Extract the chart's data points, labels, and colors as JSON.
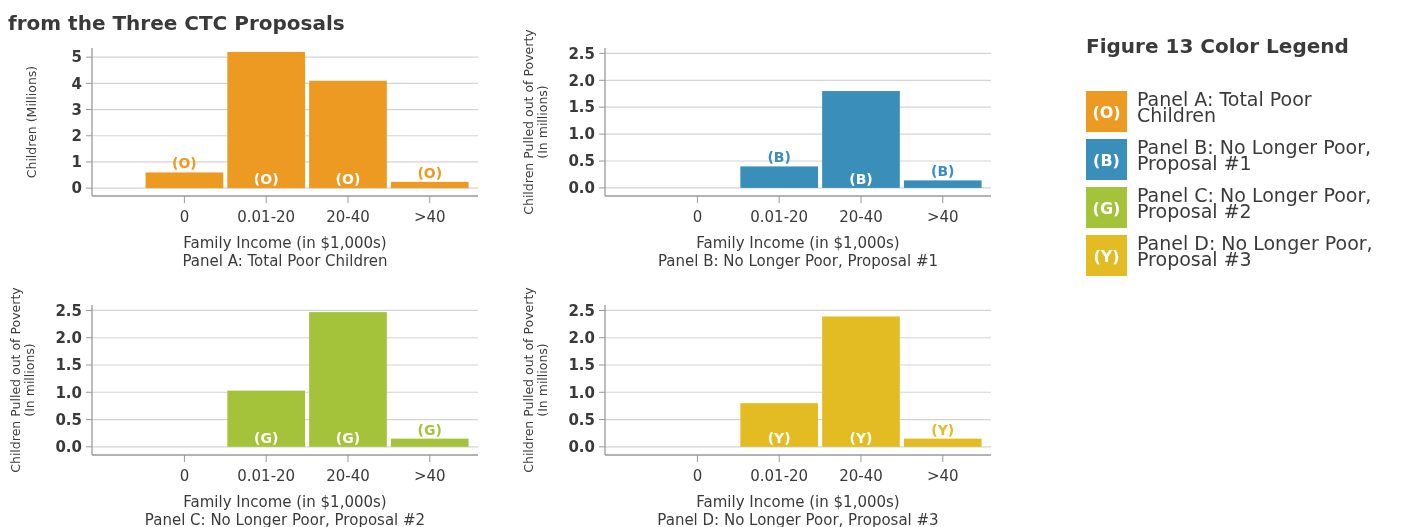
{
  "chart_data": [
    {
      "type": "bar",
      "title": "from the Three CTC Proposals",
      "categories": [
        "0",
        "0.01-20",
        "20-40",
        ">40"
      ],
      "values": [
        0.6,
        5.2,
        4.1,
        0.24
      ],
      "color": "#ec9a22",
      "value_labels": [
        "(O)",
        "(O)",
        "(O)",
        "(O)"
      ],
      "ylim": [
        -0.3,
        5.35
      ],
      "yticks": [
        0,
        1,
        2,
        3,
        4,
        5
      ],
      "grid": "y",
      "xlabel": "Family Income (in $1,000s)",
      "ylabel": "Children (Millions)",
      "annotations": [
        "Panel A: Total Poor Children"
      ]
    },
    {
      "type": "bar",
      "categories": [
        "0",
        "0.01-20",
        "20-40",
        ">40"
      ],
      "values": [
        null,
        0.4,
        1.8,
        0.14
      ],
      "color": "#3a8fba",
      "value_labels": [
        null,
        "(B)",
        "(B)",
        "(B)"
      ],
      "ylim": [
        -0.15,
        2.6
      ],
      "yticks": [
        {
          "value": 0,
          "label": "0.0"
        },
        0.5,
        {
          "value": 1,
          "label": "1.0"
        },
        1.5,
        {
          "value": 2,
          "label": "2.0"
        },
        2.5
      ],
      "grid": "y",
      "xlabel": "Family Income (in $1,000s)",
      "ylabel": "Children Pulled out of Poverty\n(In millions)",
      "annotations": [
        "Panel B: No Longer Poor, Proposal #1"
      ]
    },
    {
      "type": "bar",
      "categories": [
        "0",
        "0.01-20",
        "20-40",
        ">40"
      ],
      "values": [
        null,
        1.03,
        2.47,
        0.15
      ],
      "color": "#a5c33a",
      "value_labels": [
        null,
        "(G)",
        "(G)",
        "(G)"
      ],
      "ylim": [
        -0.15,
        2.6
      ],
      "yticks": [
        {
          "value": 0,
          "label": "0.0"
        },
        0.5,
        {
          "value": 1,
          "label": "1.0"
        },
        1.5,
        {
          "value": 2,
          "label": "2.0"
        },
        2.5
      ],
      "grid": "y",
      "xlabel": "Family Income (in $1,000s)",
      "ylabel": "Children Pulled out of Poverty\n(In millions)",
      "annotations": [
        "Panel C: No Longer Poor, Proposal #2"
      ]
    },
    {
      "type": "bar",
      "categories": [
        "0",
        "0.01-20",
        "20-40",
        ">40"
      ],
      "values": [
        null,
        0.8,
        2.39,
        0.15
      ],
      "color": "#e2bc22",
      "value_labels": [
        null,
        "(Y)",
        "(Y)",
        "(Y)"
      ],
      "ylim": [
        -0.15,
        2.6
      ],
      "yticks": [
        {
          "value": 0,
          "label": "0.0"
        },
        0.5,
        {
          "value": 1,
          "label": "1.0"
        },
        1.5,
        {
          "value": 2,
          "label": "2.0"
        },
        2.5
      ],
      "grid": "y",
      "xlabel": "Family Income (in $1,000s)",
      "ylabel": "Children Pulled out of Poverty\n(In millions)",
      "annotations": [
        "Panel D: No Longer Poor, Proposal #3"
      ]
    },
    {
      "type": "other",
      "title": "Figure 13 Color Legend",
      "categories": [
        "Panel A: Total Poor Children",
        "Panel B: No Longer Poor, Proposal #1",
        "Panel C: No Longer Poor, Proposal #2",
        "Panel D: No Longer Poor, Proposal #3"
      ],
      "colors": [
        "#ec9a22",
        "#3a8fba",
        "#a5c33a",
        "#e2bc22"
      ],
      "value_labels": [
        "(O)",
        "(B)",
        "(G)",
        "(Y)"
      ]
    }
  ]
}
